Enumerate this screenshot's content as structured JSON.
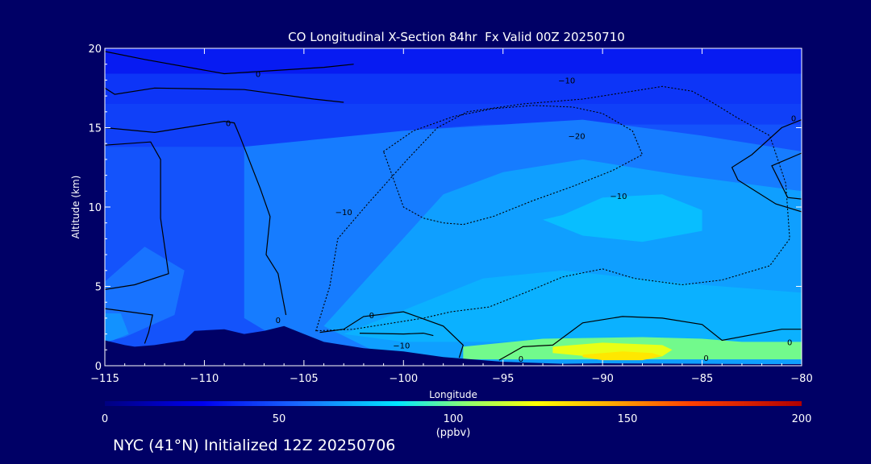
{
  "chart_data": {
    "type": "heatmap",
    "title": "CO Longitudinal X-Section 84hr  Fx Valid 00Z 20250710",
    "xlabel": "Longitude",
    "ylabel": "Altitude (km)",
    "xlim": [
      -115,
      -80
    ],
    "ylim": [
      0,
      20
    ],
    "xticks": [
      -115,
      -110,
      -105,
      -100,
      -95,
      -90,
      -85,
      -80
    ],
    "xtick_labels": [
      "−115",
      "−110",
      "−105",
      "−100",
      "−95",
      "−90",
      "−85",
      "−80"
    ],
    "yticks": [
      0,
      5,
      10,
      15,
      20
    ],
    "ytick_labels": [
      "0",
      "5",
      "10",
      "15",
      "20"
    ],
    "colorbar": {
      "label": "(ppbv)",
      "range": [
        0,
        200
      ],
      "ticks": [
        0,
        50,
        100,
        150,
        200
      ],
      "tick_labels": [
        "0",
        "50",
        "100",
        "150",
        "200"
      ],
      "orientation": "horizontal",
      "placement": "bottom"
    },
    "filled_regions": [
      {
        "co_ppbv": 35,
        "x": [
          -115,
          -80,
          -80,
          -115
        ],
        "y": [
          20,
          20,
          18.4,
          18.4
        ]
      },
      {
        "co_ppbv": 42,
        "x": [
          -115,
          -80,
          -80,
          -115
        ],
        "y": [
          18.4,
          18.4,
          16.5,
          16.5
        ]
      },
      {
        "co_ppbv": 45,
        "x": [
          -115,
          -80,
          -80,
          -115
        ],
        "y": [
          16.5,
          16.5,
          13.8,
          13.8
        ]
      },
      {
        "co_ppbv": 50,
        "x": [
          -115,
          -108,
          -104,
          -100,
          -96,
          -80,
          -80,
          -115
        ],
        "y": [
          13.8,
          13.8,
          14.2,
          14.8,
          15.2,
          15.2,
          0,
          0
        ]
      },
      {
        "co_ppbv": 60,
        "x": [
          -108,
          -100,
          -95,
          -91,
          -85,
          -80,
          -80,
          -104,
          -108
        ],
        "y": [
          13.8,
          14.8,
          15.2,
          15.5,
          14.5,
          13.5,
          0,
          0,
          3
        ]
      },
      {
        "co_ppbv": 68,
        "x": [
          -98,
          -95,
          -91,
          -86,
          -80,
          -80,
          -100,
          -104
        ],
        "y": [
          10.8,
          12.2,
          13,
          12,
          11,
          0,
          0,
          2.5
        ]
      },
      {
        "co_ppbv": 75,
        "x": [
          -92,
          -90,
          -87,
          -85,
          -85,
          -88,
          -91,
          -93
        ],
        "y": [
          9.5,
          10.6,
          10.8,
          9.8,
          8.5,
          7.8,
          8.2,
          9.2
        ]
      },
      {
        "co_ppbv": 72,
        "x": [
          -98,
          -96,
          -92,
          -86,
          -80,
          -80,
          -100,
          -103
        ],
        "y": [
          4.5,
          5.5,
          6,
          5.2,
          4.6,
          1.5,
          1.5,
          2
        ]
      },
      {
        "co_ppbv": 100,
        "x": [
          -97,
          -93,
          -88,
          -85,
          -83,
          -80,
          -80,
          -97
        ],
        "y": [
          1.2,
          1.7,
          1.8,
          1.7,
          1.5,
          1.5,
          0.4,
          0.4
        ]
      },
      {
        "co_ppbv": 120,
        "x": [
          -92.5,
          -90,
          -87,
          -86.5,
          -87,
          -90,
          -92.5
        ],
        "y": [
          1.2,
          1.45,
          1.3,
          1,
          0.6,
          0.5,
          0.8
        ]
      },
      {
        "co_ppbv": 130,
        "x": [
          -91,
          -89,
          -87.5,
          -87,
          -88,
          -90,
          -91
        ],
        "y": [
          0.7,
          0.9,
          0.8,
          0.6,
          0.35,
          0.35,
          0.55
        ]
      },
      {
        "co_ppbv": 58,
        "x": [
          -115,
          -113,
          -111,
          -111.5,
          -114,
          -115
        ],
        "y": [
          5.3,
          7.5,
          6,
          3.2,
          1.8,
          1.5
        ]
      },
      {
        "co_ppbv": 65,
        "x": [
          -115,
          -114.2,
          -113.8,
          -114.6,
          -115
        ],
        "y": [
          3.3,
          3.3,
          2,
          1.6,
          1.5
        ]
      }
    ],
    "terrain": {
      "x": [
        -115,
        -114,
        -113.5,
        -112.5,
        -111,
        -110.5,
        -109,
        -108,
        -107,
        -106,
        -105,
        -104,
        -102,
        -100,
        -98,
        -95,
        -92,
        -90,
        -85,
        -82,
        -80
      ],
      "y": [
        1.6,
        1.3,
        1.2,
        1.3,
        1.6,
        2.2,
        2.3,
        2.0,
        2.2,
        2.5,
        2.0,
        1.5,
        1.1,
        0.9,
        0.55,
        0.25,
        0.12,
        0.15,
        0.12,
        0.1,
        0.1
      ]
    },
    "contours": [
      {
        "level": 0,
        "style": "solid",
        "x": [
          -115,
          -113,
          -109,
          -104,
          -102.5
        ],
        "y": [
          19.8,
          19.3,
          18.4,
          18.8,
          19
        ]
      },
      {
        "level": 0,
        "style": "solid",
        "x": [
          -115,
          -114.5,
          -112.5,
          -108,
          -104.5,
          -103
        ],
        "y": [
          17.5,
          17.1,
          17.5,
          17.4,
          16.8,
          16.6
        ]
      },
      {
        "level": 0,
        "style": "solid",
        "x": [
          -115,
          -112.5,
          -109,
          -108.5,
          -108.2,
          -107.2,
          -106.7,
          -106.9,
          -106.3,
          -105.9
        ],
        "y": [
          15,
          14.7,
          15.4,
          15.3,
          14.4,
          11.2,
          9.4,
          7,
          5.8,
          3.2
        ]
      },
      {
        "level": 0,
        "style": "solid",
        "x": [
          -115,
          -112.7,
          -112.2,
          -112.2,
          -111.8,
          -113.5,
          -115
        ],
        "y": [
          13.9,
          14.1,
          13,
          9.3,
          5.8,
          5.1,
          4.8
        ]
      },
      {
        "level": 0,
        "style": "solid",
        "x": [
          -115,
          -113.8,
          -112.6,
          -112.8,
          -113
        ],
        "y": [
          3.6,
          3.4,
          3.2,
          2.1,
          1.4
        ]
      },
      {
        "level": 0,
        "style": "solid",
        "x": [
          -104.2,
          -103,
          -102,
          -100,
          -98,
          -97,
          -97.2
        ],
        "y": [
          2.1,
          2.3,
          3.1,
          3.4,
          2.5,
          1.3,
          0.5
        ]
      },
      {
        "level": 0,
        "style": "solid",
        "x": [
          -102.2,
          -100,
          -99,
          -98.5
        ],
        "y": [
          2.05,
          2,
          2.05,
          1.9
        ]
      },
      {
        "level": 0,
        "style": "solid",
        "x": [
          -95.2,
          -94,
          -92.5,
          -91,
          -89,
          -87,
          -85,
          -84,
          -81,
          -80
        ],
        "y": [
          0.35,
          1.2,
          1.3,
          2.7,
          3.1,
          3.0,
          2.6,
          1.6,
          2.3,
          2.3
        ]
      },
      {
        "level": 0,
        "style": "solid",
        "x": [
          -80,
          -81,
          -82.5,
          -83.5,
          -83.2,
          -81.3,
          -80
        ],
        "y": [
          15.5,
          15,
          13.3,
          12.5,
          11.7,
          10.2,
          9.7
        ]
      },
      {
        "level": 0,
        "style": "solid",
        "x": [
          -80,
          -81.5,
          -80.7,
          -80
        ],
        "y": [
          13.4,
          12.6,
          10.6,
          10.5
        ]
      },
      {
        "level": -10,
        "style": "dotted",
        "x": [
          -104.4,
          -103.7,
          -103.3,
          -101.8,
          -99.8,
          -98.3,
          -96.8,
          -94,
          -91,
          -89,
          -87,
          -85.5,
          -84.5,
          -83.2,
          -81.6,
          -80.8,
          -80.6,
          -81.6,
          -84,
          -86,
          -88.4,
          -90,
          -92,
          -93.9,
          -95.7,
          -97.6,
          -99,
          -100.5,
          -102.5,
          -104.4
        ],
        "y": [
          2.2,
          5,
          8,
          10.2,
          13,
          15,
          16,
          16.5,
          16.8,
          17.2,
          17.6,
          17.3,
          16.6,
          15.6,
          14.5,
          11.5,
          8,
          6.3,
          5.4,
          5.1,
          5.5,
          6.1,
          5.6,
          4.6,
          3.7,
          3.4,
          3,
          2.7,
          2.3,
          2.2
        ]
      },
      {
        "level": -20,
        "style": "dotted",
        "x": [
          -101,
          -99.5,
          -97.5,
          -95.5,
          -93.5,
          -91.5,
          -90,
          -88.5,
          -88,
          -89.5,
          -91.5,
          -93.5,
          -95.5,
          -97,
          -98,
          -99,
          -100,
          -101
        ],
        "y": [
          13.5,
          14.8,
          15.7,
          16.2,
          16.4,
          16.3,
          15.9,
          14.8,
          13.3,
          12.3,
          11.3,
          10.4,
          9.4,
          8.9,
          9,
          9.3,
          10,
          13.5
        ]
      }
    ],
    "contour_labels": [
      {
        "text": "0",
        "x": -107.3,
        "y": 18.4
      },
      {
        "text": "0",
        "x": -108.8,
        "y": 15.3
      },
      {
        "text": "0",
        "x": -106.3,
        "y": 2.9
      },
      {
        "text": "0",
        "x": -101.6,
        "y": 3.2
      },
      {
        "text": "0",
        "x": -94.1,
        "y": 0.45
      },
      {
        "text": "0",
        "x": -84.8,
        "y": 0.5
      },
      {
        "text": "0",
        "x": -80.6,
        "y": 1.5
      },
      {
        "text": "0",
        "x": -80.4,
        "y": 15.6
      },
      {
        "text": "−10",
        "x": -91.8,
        "y": 18.0
      },
      {
        "text": "−20",
        "x": -91.3,
        "y": 14.5
      },
      {
        "text": "−10",
        "x": -103,
        "y": 9.7
      },
      {
        "text": "−10",
        "x": -89.2,
        "y": 10.7
      },
      {
        "text": "−10",
        "x": -100.1,
        "y": 1.3
      }
    ]
  },
  "footer": "NYC (41°N) Initialized 12Z 20250706"
}
